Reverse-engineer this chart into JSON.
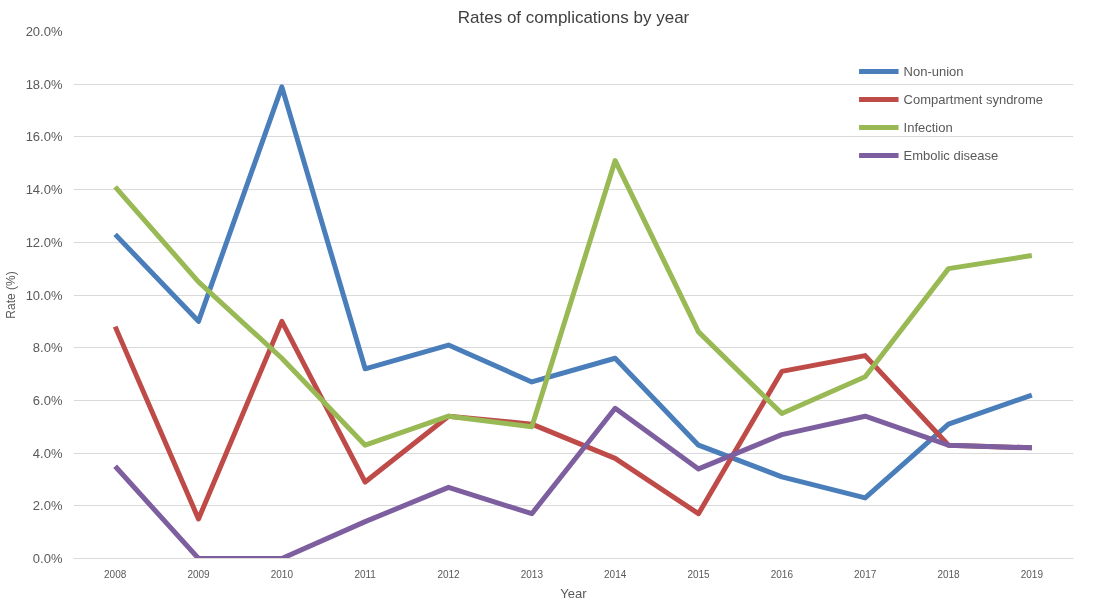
{
  "chart_data": {
    "type": "line",
    "title": "Rates of complications by year",
    "xlabel": "Year",
    "ylabel": "Rate (%)",
    "categories": [
      "2008",
      "2009",
      "2010",
      "2011",
      "2012",
      "2013",
      "2014",
      "2015",
      "2016",
      "2017",
      "2018",
      "2019"
    ],
    "series": [
      {
        "name": "Non-union",
        "color": "#4a7ebb",
        "values": [
          12.3,
          9.0,
          17.9,
          7.2,
          8.1,
          6.7,
          7.6,
          4.3,
          3.1,
          2.3,
          5.1,
          6.2
        ]
      },
      {
        "name": "Compartment syndrome",
        "color": "#be4b48",
        "values": [
          8.8,
          1.5,
          9.0,
          2.9,
          5.4,
          5.1,
          3.8,
          1.7,
          7.1,
          7.7,
          4.3,
          4.2
        ]
      },
      {
        "name": "Infection",
        "color": "#98b954",
        "values": [
          14.1,
          10.5,
          7.6,
          4.3,
          5.4,
          5.0,
          15.1,
          8.6,
          5.5,
          6.9,
          11.0,
          11.5
        ]
      },
      {
        "name": "Embolic disease",
        "color": "#7d5fa0",
        "values": [
          3.5,
          0,
          0,
          1.4,
          2.7,
          1.7,
          5.7,
          3.4,
          4.7,
          5.4,
          4.3,
          4.2
        ]
      }
    ],
    "ylim": [
      0,
      20
    ],
    "yticks": [
      {
        "value": 0,
        "label": "0.0%"
      },
      {
        "value": 2,
        "label": "2.0%"
      },
      {
        "value": 4,
        "label": "4.0%"
      },
      {
        "value": 6,
        "label": "6.0%"
      },
      {
        "value": 8,
        "label": "8.0%"
      },
      {
        "value": 10,
        "label": "10.0%"
      },
      {
        "value": 12,
        "label": "12.0%"
      },
      {
        "value": 14,
        "label": "14.0%"
      },
      {
        "value": 16,
        "label": "16.0%"
      },
      {
        "value": 18,
        "label": "18.0%"
      },
      {
        "value": 20,
        "label": "20.0%"
      }
    ],
    "grid": "y",
    "legend": "top right",
    "line_style": "solid"
  }
}
